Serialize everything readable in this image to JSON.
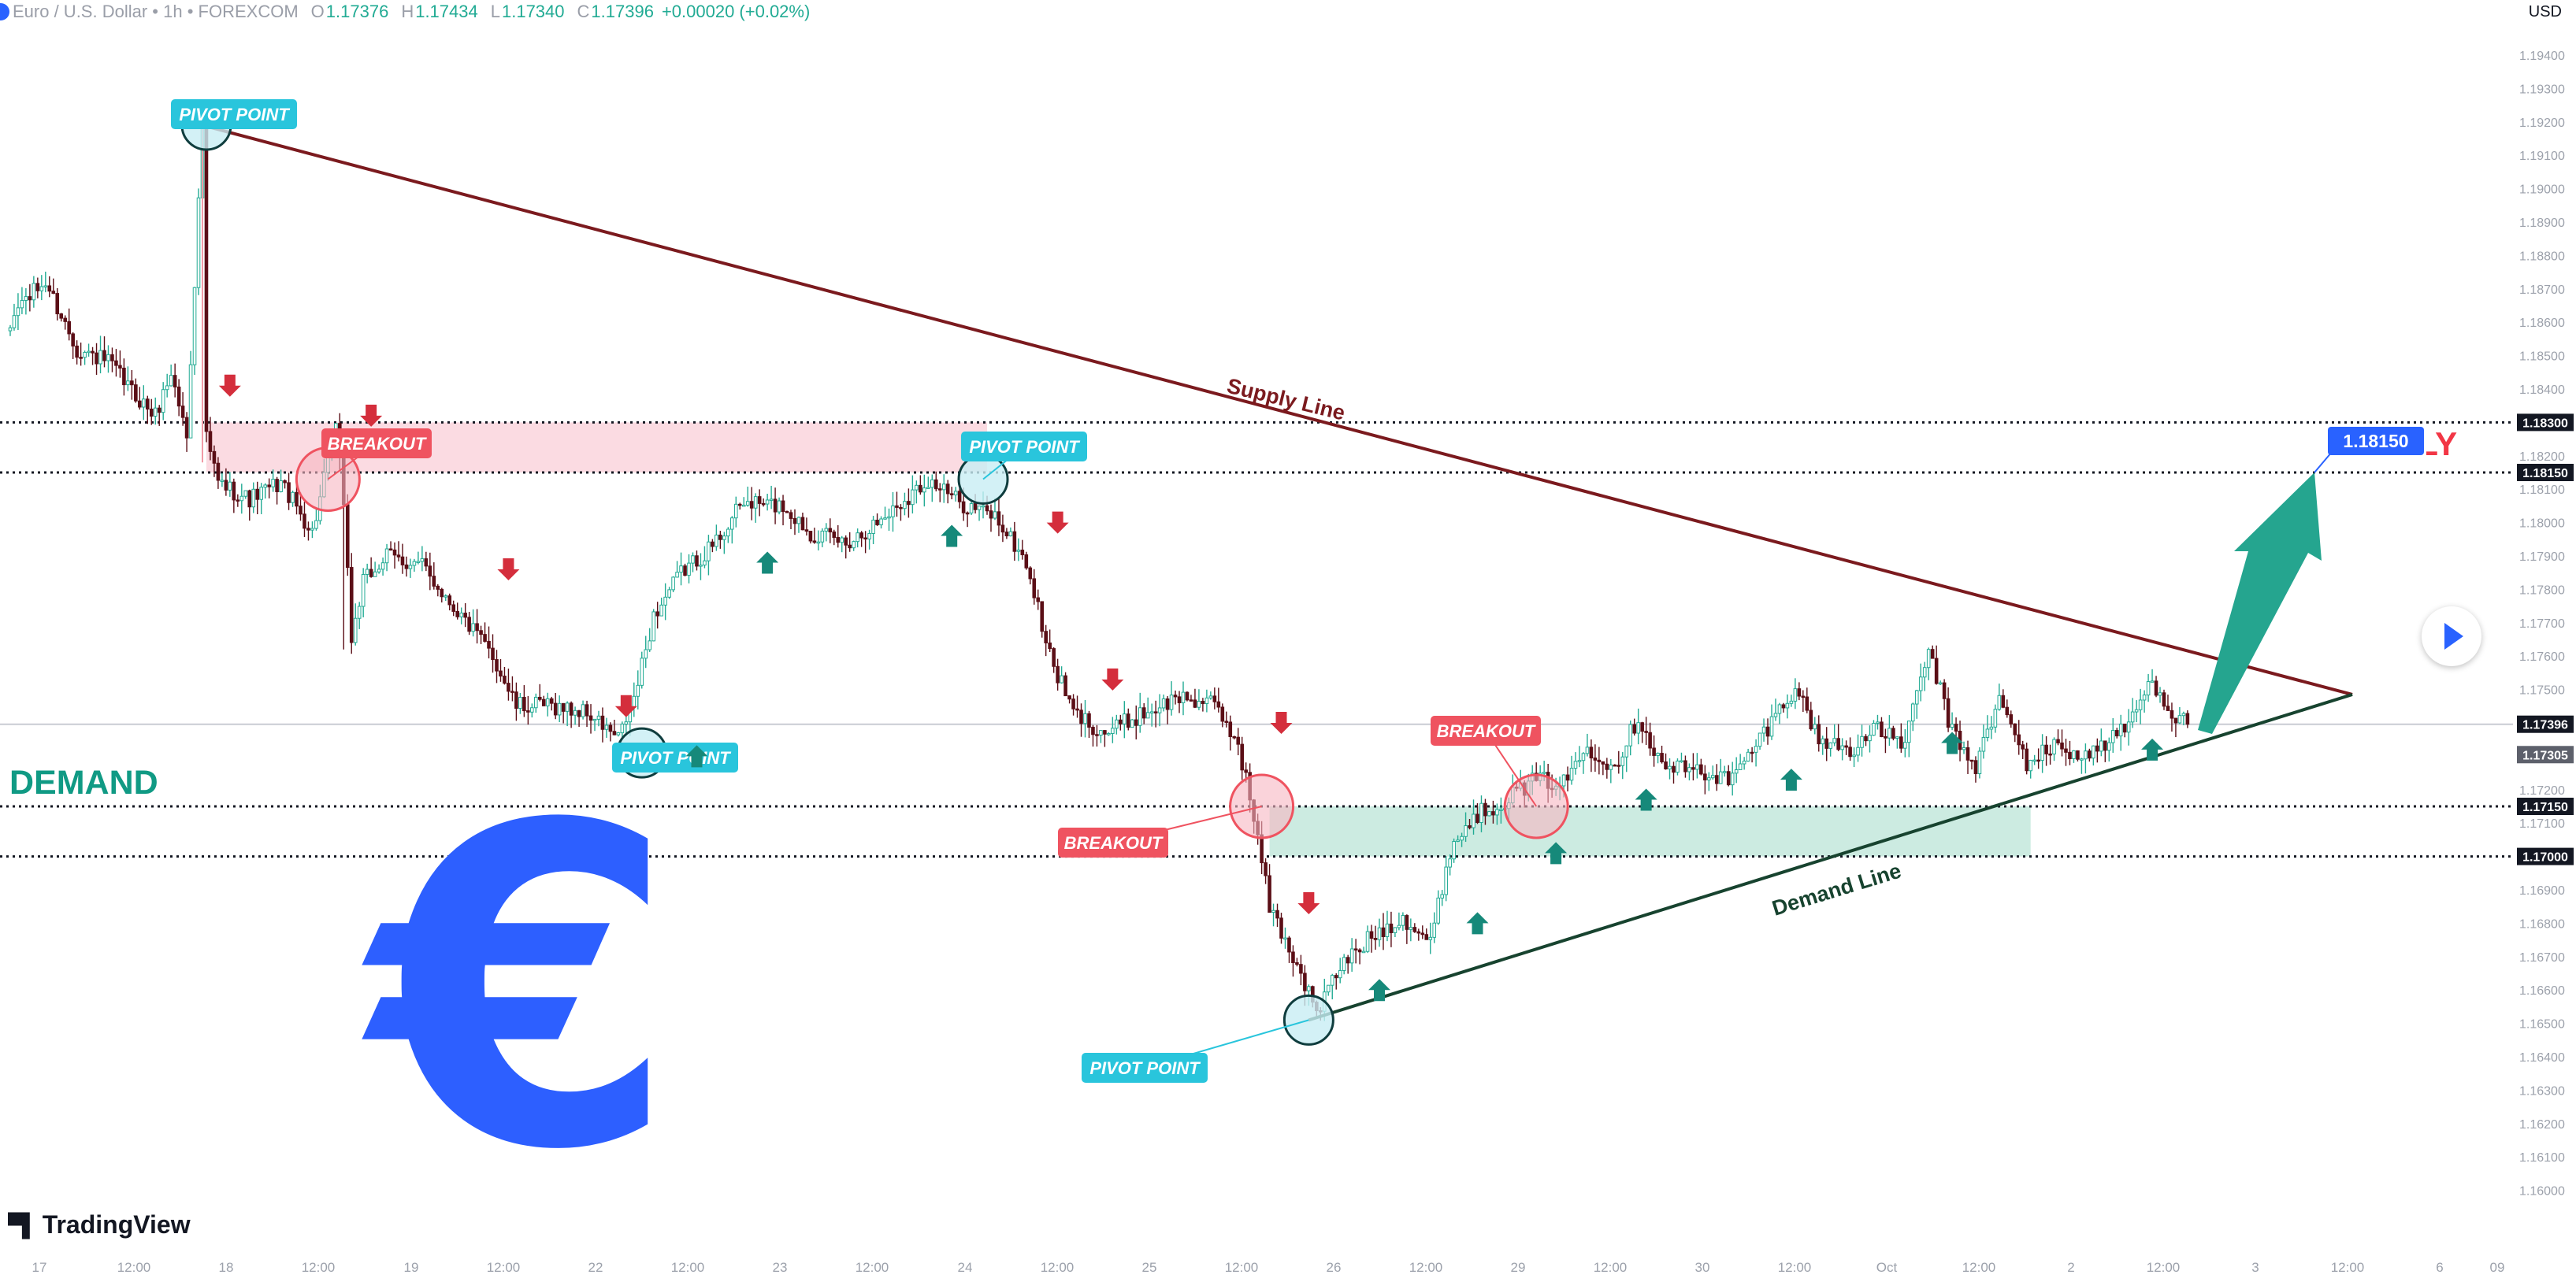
{
  "header": {
    "symbol": "Euro / U.S. Dollar",
    "interval": "1h",
    "exchange": "FOREXCOM",
    "open_label": "O",
    "open": "1.17376",
    "high_label": "H",
    "high": "1.17434",
    "low_label": "L",
    "low": "1.17340",
    "close_label": "C",
    "close": "1.17396",
    "change": "+0.00020 (+0.02%)"
  },
  "currency": "USD",
  "brand": "TradingView",
  "colors": {
    "up": "#22ab94",
    "down": "#5b0e16",
    "supply_line": "#7b1a1e",
    "demand_line": "#17432f",
    "pivot_label": "#29c5dc",
    "breakout_label": "#ef5360",
    "demand_text": "#109a84",
    "supply_text": "#f23645",
    "euro": "#2d5fff",
    "target": "#2962ff",
    "arrow": "#25a58f"
  },
  "chart_data": {
    "type": "candlestick",
    "symbol": "EURUSD",
    "timeframe": "1h",
    "ylim": [
      1.159,
      1.1955
    ],
    "y_ticks": [
      "1.19400",
      "1.19300",
      "1.19200",
      "1.19100",
      "1.19000",
      "1.18900",
      "1.18800",
      "1.18700",
      "1.18600",
      "1.18500",
      "1.18400",
      "1.18300",
      "1.18200",
      "1.18100",
      "1.18000",
      "1.17900",
      "1.17800",
      "1.17700",
      "1.17600",
      "1.17500",
      "1.17400",
      "1.17300",
      "1.17200",
      "1.17100",
      "1.17000",
      "1.16900",
      "1.16800",
      "1.16700",
      "1.16600",
      "1.16500",
      "1.16400",
      "1.16300",
      "1.16200",
      "1.16100",
      "1.16000"
    ],
    "x_ticks": [
      "17",
      "12:00",
      "18",
      "12:00",
      "19",
      "12:00",
      "22",
      "12:00",
      "23",
      "12:00",
      "24",
      "12:00",
      "25",
      "12:00",
      "26",
      "12:00",
      "29",
      "12:00",
      "30",
      "12:00",
      "Oct",
      "12:00",
      "2",
      "12:00",
      "3",
      "12:00",
      "6",
      "09"
    ],
    "price_badges": [
      {
        "label": "1.18300",
        "value": 1.183,
        "bg": "#131722"
      },
      {
        "label": "1.18150",
        "value": 1.1815,
        "bg": "#131722"
      },
      {
        "label": "1.17396",
        "value": 1.17396,
        "bg": "#131722"
      },
      {
        "label": "1.17305",
        "value": 1.17305,
        "bg": "#5d606b"
      },
      {
        "label": "1.17150",
        "value": 1.1715,
        "bg": "#131722"
      },
      {
        "label": "1.17000",
        "value": 1.17,
        "bg": "#131722"
      }
    ],
    "levels": [
      1.183,
      1.1815,
      1.1715,
      1.17
    ],
    "current_price": 1.17396,
    "anchors": [
      [
        0,
        1.1855
      ],
      [
        3,
        1.1865
      ],
      [
        10,
        1.1872
      ],
      [
        18,
        1.1852
      ],
      [
        26,
        1.1848
      ],
      [
        33,
        1.1838
      ],
      [
        38,
        1.1832
      ],
      [
        42,
        1.1845
      ],
      [
        46,
        1.1826
      ],
      [
        50,
        1.1919
      ],
      [
        51,
        1.1825
      ],
      [
        54,
        1.1812
      ],
      [
        62,
        1.1807
      ],
      [
        70,
        1.1812
      ],
      [
        78,
        1.1797
      ],
      [
        84,
        1.1828
      ],
      [
        86,
        1.1807
      ],
      [
        88,
        1.1765
      ],
      [
        91,
        1.1782
      ],
      [
        97,
        1.179
      ],
      [
        106,
        1.1787
      ],
      [
        114,
        1.1775
      ],
      [
        124,
        1.176
      ],
      [
        130,
        1.1745
      ],
      [
        140,
        1.1745
      ],
      [
        148,
        1.1743
      ],
      [
        156,
        1.1735
      ],
      [
        160,
        1.1747
      ],
      [
        165,
        1.1772
      ],
      [
        172,
        1.1785
      ],
      [
        180,
        1.1793
      ],
      [
        188,
        1.1806
      ],
      [
        198,
        1.1805
      ],
      [
        205,
        1.1797
      ],
      [
        214,
        1.1794
      ],
      [
        222,
        1.18
      ],
      [
        235,
        1.1813
      ],
      [
        243,
        1.1806
      ],
      [
        252,
        1.1802
      ],
      [
        260,
        1.1788
      ],
      [
        266,
        1.176
      ],
      [
        272,
        1.1743
      ],
      [
        280,
        1.1737
      ],
      [
        290,
        1.1743
      ],
      [
        300,
        1.1748
      ],
      [
        308,
        1.1745
      ],
      [
        314,
        1.1734
      ],
      [
        318,
        1.1712
      ],
      [
        322,
        1.1685
      ],
      [
        330,
        1.1665
      ],
      [
        334,
        1.1653
      ],
      [
        340,
        1.1667
      ],
      [
        348,
        1.1676
      ],
      [
        356,
        1.1682
      ],
      [
        363,
        1.1674
      ],
      [
        368,
        1.1702
      ],
      [
        374,
        1.1712
      ],
      [
        382,
        1.1717
      ],
      [
        390,
        1.1723
      ],
      [
        397,
        1.1722
      ],
      [
        403,
        1.1733
      ],
      [
        410,
        1.1727
      ],
      [
        416,
        1.1742
      ],
      [
        422,
        1.1727
      ],
      [
        430,
        1.1726
      ],
      [
        440,
        1.1723
      ],
      [
        448,
        1.1737
      ],
      [
        456,
        1.1751
      ],
      [
        462,
        1.1735
      ],
      [
        470,
        1.1732
      ],
      [
        477,
        1.1738
      ],
      [
        484,
        1.1734
      ],
      [
        490,
        1.1762
      ],
      [
        496,
        1.1737
      ],
      [
        502,
        1.1727
      ],
      [
        508,
        1.1747
      ],
      [
        515,
        1.1728
      ],
      [
        522,
        1.1733
      ],
      [
        530,
        1.173
      ],
      [
        540,
        1.1738
      ],
      [
        547,
        1.1753
      ],
      [
        552,
        1.1743
      ],
      [
        556,
        1.17396
      ]
    ],
    "supply_line": {
      "label": "Supply Line",
      "from": {
        "i": 50,
        "p": 1.1919
      },
      "to": {
        "i": 598,
        "p": 1.17485
      }
    },
    "demand_line": {
      "label": "Demand Line",
      "from": {
        "i": 332,
        "p": 1.1651
      },
      "to": {
        "i": 598,
        "p": 1.17485
      }
    },
    "supply_zone": {
      "from_i": 51,
      "to_i": 250,
      "top": 1.183,
      "bottom": 1.1815
    },
    "demand_zone": {
      "from_i": 322,
      "to_i": 516,
      "top": 1.1715,
      "bottom": 1.17
    },
    "pivot_points": [
      {
        "label": "PIVOT POINT",
        "i": 51,
        "p": 1.1919,
        "lx": 297,
        "ly": 145
      },
      {
        "label": "PIVOT POINT",
        "i": 162,
        "p": 1.1731,
        "lx": 857,
        "ly": 962
      },
      {
        "label": "PIVOT POINT",
        "i": 249,
        "p": 1.1813,
        "lx": 1300,
        "ly": 567
      },
      {
        "label": "PIVOT POINT",
        "i": 332,
        "p": 1.1651,
        "lx": 1453,
        "ly": 1356
      }
    ],
    "breakouts": [
      {
        "label": "BREAKOUT",
        "i": 82,
        "p": 1.1813,
        "lx": 478,
        "ly": 563
      },
      {
        "label": "BREAKOUT",
        "i": 320,
        "p": 1.1715,
        "lx": 1413,
        "ly": 1070
      },
      {
        "label": "BREAKOUT",
        "i": 390,
        "p": 1.1715,
        "lx": 1886,
        "ly": 928
      }
    ],
    "down_arrows": [
      [
        57,
        1.1841
      ],
      [
        93,
        1.1832
      ],
      [
        128,
        1.1786
      ],
      [
        158,
        1.1745
      ],
      [
        268,
        1.18
      ],
      [
        282,
        1.1753
      ],
      [
        325,
        1.174
      ],
      [
        332,
        1.1686
      ]
    ],
    "up_arrows": [
      [
        176,
        1.173
      ],
      [
        194,
        1.1788
      ],
      [
        241,
        1.1796
      ],
      [
        350,
        1.166
      ],
      [
        375,
        1.168
      ],
      [
        395,
        1.1701
      ],
      [
        418,
        1.1717
      ],
      [
        455,
        1.1723
      ],
      [
        496,
        1.1734
      ],
      [
        547,
        1.1732
      ]
    ],
    "target": {
      "label": "1.18150",
      "value": 1.1815
    },
    "annotations": {
      "demand": "DEMAND",
      "supply": "SUPPLY"
    }
  }
}
